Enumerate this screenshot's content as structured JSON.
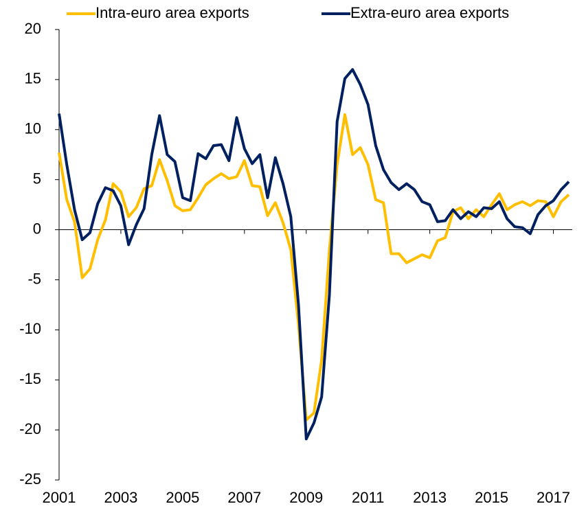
{
  "chart_data": {
    "type": "line",
    "x": [
      2001,
      2001.25,
      2001.5,
      2001.75,
      2002,
      2002.25,
      2002.5,
      2002.75,
      2003,
      2003.25,
      2003.5,
      2003.75,
      2004,
      2004.25,
      2004.5,
      2004.75,
      2005,
      2005.25,
      2005.5,
      2005.75,
      2006,
      2006.25,
      2006.5,
      2006.75,
      2007,
      2007.25,
      2007.5,
      2007.75,
      2008,
      2008.25,
      2008.5,
      2008.75,
      2009,
      2009.25,
      2009.5,
      2009.75,
      2010,
      2010.25,
      2010.5,
      2010.75,
      2011,
      2011.25,
      2011.5,
      2011.75,
      2012,
      2012.25,
      2012.5,
      2012.75,
      2013,
      2013.25,
      2013.5,
      2013.75,
      2014,
      2014.25,
      2014.5,
      2014.75,
      2015,
      2015.25,
      2015.5,
      2015.75,
      2016,
      2016.25,
      2016.5,
      2016.75,
      2017,
      2017.25,
      2017.5
    ],
    "series": [
      {
        "name": "Intra-euro area exports",
        "color": "#FFBF00",
        "values": [
          7.7,
          3.0,
          0.8,
          -4.8,
          -3.9,
          -1.0,
          1.0,
          4.6,
          3.8,
          1.3,
          2.2,
          4.1,
          4.4,
          7.0,
          4.9,
          2.4,
          1.9,
          2.0,
          3.2,
          4.5,
          5.1,
          5.6,
          5.1,
          5.3,
          6.9,
          4.4,
          4.3,
          1.4,
          2.7,
          0.7,
          -2.0,
          -9.5,
          -19.0,
          -18.3,
          -13.0,
          -2.0,
          6.5,
          11.5,
          7.5,
          8.2,
          6.5,
          3.0,
          2.7,
          -2.4,
          -2.4,
          -3.3,
          -2.9,
          -2.5,
          -2.8,
          -1.1,
          -0.8,
          1.8,
          2.2,
          1.1,
          2.0,
          1.3,
          2.5,
          3.6,
          2.0,
          2.5,
          2.8,
          2.4,
          2.9,
          2.8,
          1.3,
          2.8,
          3.5
        ]
      },
      {
        "name": "Extra-euro area exports",
        "color": "#002060",
        "values": [
          11.6,
          6.5,
          2.0,
          -1.0,
          -0.3,
          2.6,
          4.2,
          3.9,
          2.4,
          -1.5,
          0.5,
          2.1,
          7.5,
          11.4,
          7.5,
          6.8,
          3.2,
          2.9,
          7.6,
          7.1,
          8.4,
          8.5,
          6.9,
          11.2,
          8.1,
          6.6,
          7.5,
          3.2,
          7.2,
          4.6,
          1.3,
          -7.5,
          -20.9,
          -19.3,
          -16.7,
          -6.5,
          10.8,
          15.1,
          16.0,
          14.5,
          12.5,
          8.4,
          6.0,
          4.7,
          4.0,
          4.6,
          4.0,
          2.8,
          2.5,
          0.8,
          0.9,
          2.0,
          1.1,
          1.8,
          1.3,
          2.2,
          2.1,
          2.8,
          1.1,
          0.3,
          0.2,
          -0.4,
          1.5,
          2.4,
          2.9,
          4.0,
          4.8
        ]
      }
    ],
    "xlim": [
      2001,
      2017.5
    ],
    "xticks": [
      2001,
      2003,
      2005,
      2007,
      2009,
      2011,
      2013,
      2015,
      2017
    ],
    "ylim": [
      -25,
      20
    ],
    "yticks": [
      -25,
      -20,
      -15,
      -10,
      -5,
      0,
      5,
      10,
      15,
      20
    ]
  }
}
